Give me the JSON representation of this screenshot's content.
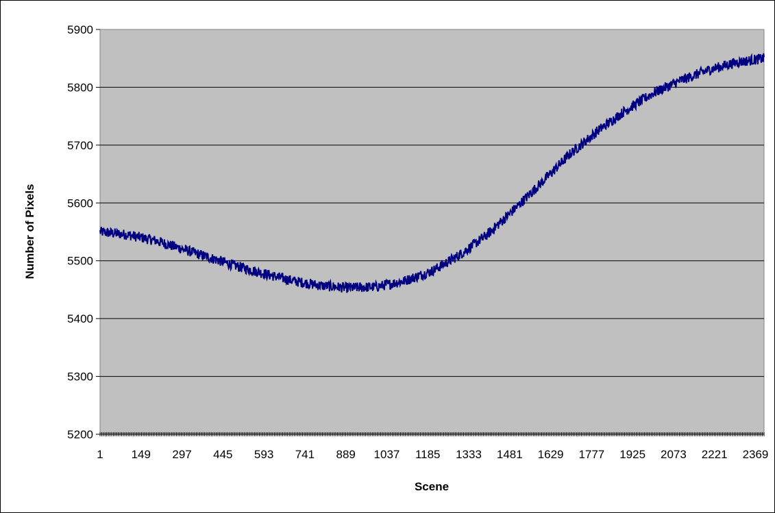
{
  "chart_data": {
    "type": "line",
    "title": "",
    "xlabel": "Scene",
    "ylabel": "Number of Pixels",
    "xlim": [
      1,
      2400
    ],
    "ylim": [
      5200,
      5900
    ],
    "x_tick_labels": [
      "1",
      "149",
      "297",
      "445",
      "593",
      "741",
      "889",
      "1037",
      "1185",
      "1333",
      "1481",
      "1629",
      "1777",
      "1925",
      "2073",
      "2221",
      "2369"
    ],
    "y_tick_labels": [
      "5900",
      "5800",
      "5700",
      "5600",
      "5500",
      "5400",
      "5300",
      "5200"
    ],
    "y_ticks": [
      5900,
      5800,
      5700,
      5600,
      5500,
      5400,
      5300,
      5200
    ],
    "grid": true,
    "legend": "none",
    "colors": {
      "plot_background": "#c0c0c0",
      "line": "#000080",
      "gridline": "#000000"
    },
    "series": [
      {
        "x": [
          1,
          100,
          200,
          300,
          400,
          500,
          600,
          700,
          800,
          900,
          1000,
          1100,
          1200,
          1300,
          1400,
          1500,
          1600,
          1700,
          1800,
          1900,
          2000,
          2100,
          2200,
          2300,
          2400
        ],
        "values": [
          5550,
          5545,
          5535,
          5520,
          5505,
          5490,
          5477,
          5465,
          5457,
          5453,
          5455,
          5465,
          5482,
          5510,
          5545,
          5590,
          5637,
          5685,
          5725,
          5760,
          5790,
          5812,
          5830,
          5843,
          5850
        ]
      }
    ]
  }
}
